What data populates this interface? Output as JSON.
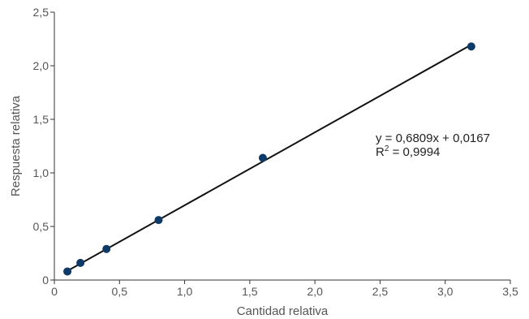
{
  "chart_data": {
    "type": "scatter",
    "title": "",
    "xlabel": "Cantidad relativa",
    "ylabel": "Respuesta relativa",
    "xlim": [
      0,
      3.5
    ],
    "ylim": [
      0,
      2.5
    ],
    "x_ticks": [
      "0",
      "0,5",
      "1,0",
      "1,5",
      "2,0",
      "2,5",
      "3,0",
      "3,5"
    ],
    "y_ticks": [
      "0",
      "0,5",
      "1,0",
      "1,5",
      "2,0",
      "2,5"
    ],
    "grid": false,
    "points": [
      {
        "x": 0.1,
        "y": 0.08
      },
      {
        "x": 0.2,
        "y": 0.16
      },
      {
        "x": 0.4,
        "y": 0.29
      },
      {
        "x": 0.8,
        "y": 0.56
      },
      {
        "x": 1.6,
        "y": 1.14
      },
      {
        "x": 3.2,
        "y": 2.18
      }
    ],
    "trendline": {
      "slope": 0.6809,
      "intercept": 0.0167,
      "x_range": [
        0.1,
        3.2
      ]
    },
    "annotations": {
      "equation": "y = 0,6809x + 0,0167",
      "r_squared_label": "R",
      "r_squared_sup": "2",
      "r_squared_value": " = 0,9994"
    },
    "colors": {
      "marker": "#0d3a66",
      "line": "#111111",
      "axis": "#333333"
    }
  }
}
